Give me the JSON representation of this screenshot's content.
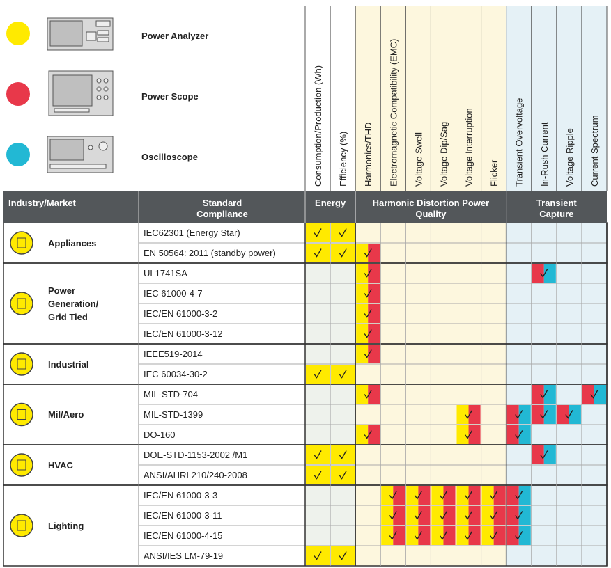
{
  "legend": [
    {
      "label": "Power Analyzer",
      "color": "#ffea00"
    },
    {
      "label": "Power Scope",
      "color": "#e8384a"
    },
    {
      "label": "Oscilloscope",
      "color": "#22b8d4"
    }
  ],
  "columns": [
    "Consumption/Production (Wh)",
    "Efficiency (%)",
    "Harmonics/THD",
    "Electromagnetic Compatibility (EMC)",
    "Voltage Swell",
    "Voltage Dip/Sag",
    "Voltage Interruption",
    "Flicker",
    "Transient Overvoltage",
    "In-Rush Current",
    "Voltage Ripple",
    "Current Spectrum"
  ],
  "header": {
    "industry": "Industry/Market",
    "standard": "Standard Compliance",
    "column_groups": [
      "Energy",
      "Harmonic Distortion Power Quality",
      "Transient Capture"
    ]
  },
  "groups": [
    {
      "label": "Appliances",
      "rows": [
        {
          "standard": "IEC62301 (Energy Star)",
          "cells": [
            [
              0
            ],
            [
              0
            ],
            [],
            [],
            [],
            [],
            [],
            [],
            [],
            [],
            [],
            []
          ]
        },
        {
          "standard": "EN 50564: 2011 (standby power)",
          "cells": [
            [
              0
            ],
            [
              0
            ],
            [
              0,
              1
            ],
            [],
            [],
            [],
            [],
            [],
            [],
            [],
            [],
            []
          ]
        }
      ]
    },
    {
      "label": "Power Generation/ Grid Tied",
      "rows": [
        {
          "standard": "UL1741SA",
          "cells": [
            [],
            [],
            [
              0,
              1
            ],
            [],
            [],
            [],
            [],
            [],
            [],
            [
              1,
              2
            ],
            [],
            []
          ]
        },
        {
          "standard": "IEC 61000-4-7",
          "cells": [
            [],
            [],
            [
              0,
              1
            ],
            [],
            [],
            [],
            [],
            [],
            [],
            [],
            [],
            []
          ]
        },
        {
          "standard": "IEC/EN 61000-3-2",
          "cells": [
            [],
            [],
            [
              0,
              1
            ],
            [],
            [],
            [],
            [],
            [],
            [],
            [],
            [],
            []
          ]
        },
        {
          "standard": "IEC/EN 61000-3-12",
          "cells": [
            [],
            [],
            [
              0,
              1
            ],
            [],
            [],
            [],
            [],
            [],
            [],
            [],
            [],
            []
          ]
        }
      ]
    },
    {
      "label": "Industrial",
      "rows": [
        {
          "standard": "IEEE519-2014",
          "cells": [
            [],
            [],
            [
              0,
              1
            ],
            [],
            [],
            [],
            [],
            [],
            [],
            [],
            [],
            []
          ]
        },
        {
          "standard": "IEC 60034-30-2",
          "cells": [
            [
              0
            ],
            [
              0
            ],
            [],
            [],
            [],
            [],
            [],
            [],
            [],
            [],
            [],
            []
          ]
        }
      ]
    },
    {
      "label": "Mil/Aero",
      "rows": [
        {
          "standard": "MIL-STD-704",
          "cells": [
            [],
            [],
            [
              0,
              1
            ],
            [],
            [],
            [],
            [],
            [],
            [],
            [
              1,
              2
            ],
            [],
            [
              1,
              2
            ]
          ]
        },
        {
          "standard": "MIL-STD-1399",
          "cells": [
            [],
            [],
            [],
            [],
            [],
            [],
            [
              0,
              1
            ],
            [],
            [
              1,
              2
            ],
            [
              1,
              2
            ],
            [
              1,
              2
            ],
            []
          ]
        },
        {
          "standard": "DO-160",
          "cells": [
            [],
            [],
            [
              0,
              1
            ],
            [],
            [],
            [],
            [
              0,
              1
            ],
            [],
            [
              1,
              2
            ],
            [],
            [],
            []
          ]
        }
      ]
    },
    {
      "label": "HVAC",
      "rows": [
        {
          "standard": "DOE-STD-1153-2002 /M1",
          "cells": [
            [
              0
            ],
            [
              0
            ],
            [],
            [],
            [],
            [],
            [],
            [],
            [],
            [
              1,
              2
            ],
            [],
            []
          ]
        },
        {
          "standard": "ANSI/AHRI 210/240-2008",
          "cells": [
            [
              0
            ],
            [
              0
            ],
            [],
            [],
            [],
            [],
            [],
            [],
            [],
            [],
            [],
            []
          ]
        }
      ]
    },
    {
      "label": "Lighting",
      "rows": [
        {
          "standard": "IEC/EN 61000-3-3",
          "cells": [
            [],
            [],
            [],
            [
              0,
              1
            ],
            [
              0,
              1
            ],
            [
              0,
              1
            ],
            [
              0,
              1
            ],
            [
              0,
              1
            ],
            [
              1,
              2
            ],
            [],
            [],
            []
          ]
        },
        {
          "standard": "IEC/EN 61000-3-11",
          "cells": [
            [],
            [],
            [],
            [
              0,
              1
            ],
            [
              0,
              1
            ],
            [
              0,
              1
            ],
            [
              0,
              1
            ],
            [
              0,
              1
            ],
            [
              1,
              2
            ],
            [],
            [],
            []
          ]
        },
        {
          "standard": "IEC/EN 61000-4-15",
          "cells": [
            [],
            [],
            [],
            [
              0,
              1
            ],
            [
              0,
              1
            ],
            [
              0,
              1
            ],
            [
              0,
              1
            ],
            [
              0,
              1
            ],
            [
              1,
              2
            ],
            [],
            [],
            []
          ]
        },
        {
          "standard": "ANSI/IES LM-79-19",
          "cells": [
            [
              0
            ],
            [
              0
            ],
            [],
            [],
            [],
            [],
            [],
            [],
            [],
            [],
            [],
            []
          ]
        }
      ]
    }
  ]
}
